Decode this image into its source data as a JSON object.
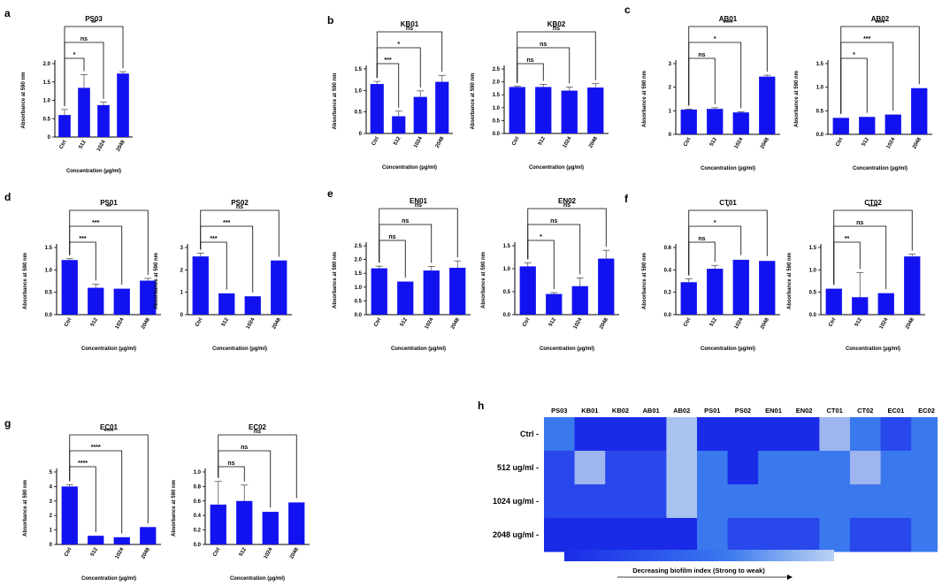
{
  "panels": [
    {
      "letter": "a"
    },
    {
      "letter": "b"
    },
    {
      "letter": "c"
    },
    {
      "letter": "d"
    },
    {
      "letter": "e"
    },
    {
      "letter": "f"
    },
    {
      "letter": "g"
    },
    {
      "letter": "h"
    }
  ],
  "colors": {
    "bar": "#1212f0",
    "text": "#000000"
  },
  "chart_data": [
    {
      "type": "bar",
      "panel": "a",
      "title": "PS03",
      "xlabel": "Concentration (µg/ml)",
      "ylabel": "Absorbance at 590 nm",
      "categories": [
        "Ctrl",
        "512",
        "1024",
        "2048"
      ],
      "values": [
        0.6,
        1.34,
        0.87,
        1.73
      ],
      "errors": [
        0.15,
        0.36,
        0.08,
        0.05
      ],
      "ylim": [
        0,
        2.0
      ],
      "yticks": [
        0,
        0.5,
        1.0,
        1.5,
        2.0
      ],
      "yticklabels": [
        "0",
        "0.5",
        "1.0",
        "1.5",
        "2.0"
      ],
      "sig": [
        {
          "from": 0,
          "to": 1,
          "label": "*",
          "level": 0
        },
        {
          "from": 0,
          "to": 2,
          "label": "ns",
          "level": 1
        },
        {
          "from": 0,
          "to": 3,
          "label": "**",
          "level": 2
        }
      ]
    },
    {
      "type": "bar",
      "panel": "b",
      "title": "KB01",
      "xlabel": "Concentration (µg/ml)",
      "ylabel": "Absorbance at 590 nm",
      "categories": [
        "Ctrl",
        "512",
        "1024",
        "2048"
      ],
      "values": [
        1.15,
        0.4,
        0.85,
        1.2
      ],
      "errors": [
        0.06,
        0.12,
        0.14,
        0.15
      ],
      "ylim": [
        0,
        1.5
      ],
      "yticks": [
        0,
        0.5,
        1.0,
        1.5
      ],
      "yticklabels": [
        "0",
        "0.5",
        "1.0",
        "1.5"
      ],
      "sig": [
        {
          "from": 0,
          "to": 1,
          "label": "***",
          "level": 0
        },
        {
          "from": 0,
          "to": 2,
          "label": "*",
          "level": 1
        },
        {
          "from": 0,
          "to": 3,
          "label": "ns",
          "level": 2
        }
      ]
    },
    {
      "type": "bar",
      "panel": "b",
      "title": "KB02",
      "xlabel": "Concentration (µg/ml)",
      "ylabel": "Absorbance at 590 nm",
      "categories": [
        "Ctrl",
        "512",
        "1024",
        "2048"
      ],
      "values": [
        1.8,
        1.8,
        1.66,
        1.78
      ],
      "errors": [
        0.03,
        0.1,
        0.14,
        0.15
      ],
      "ylim": [
        0,
        2.5
      ],
      "yticks": [
        0,
        0.5,
        1.0,
        1.5,
        2.0,
        2.5
      ],
      "yticklabels": [
        "0.0",
        "0.5",
        "1.0",
        "1.5",
        "2.0",
        "2.5"
      ],
      "sig": [
        {
          "from": 0,
          "to": 1,
          "label": "ns",
          "level": 0
        },
        {
          "from": 0,
          "to": 2,
          "label": "ns",
          "level": 1
        },
        {
          "from": 0,
          "to": 3,
          "label": "ns",
          "level": 2
        }
      ]
    },
    {
      "type": "bar",
      "panel": "c",
      "title": "AB01",
      "xlabel": "Concentration (µg/ml)",
      "ylabel": "Absorbance at 590 nm",
      "categories": [
        "Ctrl",
        "512",
        "1024",
        "2048"
      ],
      "values": [
        1.05,
        1.08,
        0.93,
        2.45
      ],
      "errors": [
        0.02,
        0.05,
        0.03,
        0.06
      ],
      "ylim": [
        0,
        3
      ],
      "yticks": [
        0,
        1,
        2,
        3
      ],
      "yticklabels": [
        "0",
        "1",
        "2",
        "3"
      ],
      "sig": [
        {
          "from": 0,
          "to": 1,
          "label": "ns",
          "level": 0
        },
        {
          "from": 0,
          "to": 2,
          "label": "*",
          "level": 1
        },
        {
          "from": 0,
          "to": 3,
          "label": "****",
          "level": 2
        }
      ]
    },
    {
      "type": "bar",
      "panel": "c",
      "title": "AB02",
      "xlabel": "Concentration (µg/ml)",
      "ylabel": "Absorbance at 590 nm",
      "categories": [
        "Ctrl",
        "512",
        "1024",
        "2048"
      ],
      "values": [
        0.35,
        0.37,
        0.42,
        0.98
      ],
      "errors": [
        0.01,
        0.01,
        0.01,
        0.01
      ],
      "ylim": [
        0,
        1.5
      ],
      "yticks": [
        0,
        0.5,
        1.0,
        1.5
      ],
      "yticklabels": [
        "0.0",
        "0.5",
        "1.0",
        "1.5"
      ],
      "sig": [
        {
          "from": 0,
          "to": 1,
          "label": "*",
          "level": 0
        },
        {
          "from": 0,
          "to": 2,
          "label": "***",
          "level": 1
        },
        {
          "from": 0,
          "to": 3,
          "label": "****",
          "level": 2
        }
      ]
    },
    {
      "type": "bar",
      "panel": "d",
      "title": "PS01",
      "xlabel": "Concentration (µg/ml)",
      "ylabel": "Absorbance at 590 nm",
      "categories": [
        "Ctrl",
        "512",
        "1024",
        "2048"
      ],
      "values": [
        1.22,
        0.6,
        0.58,
        0.76
      ],
      "errors": [
        0.03,
        0.08,
        0.01,
        0.05
      ],
      "ylim": [
        0,
        1.5
      ],
      "yticks": [
        0,
        0.5,
        1.0,
        1.5
      ],
      "yticklabels": [
        "0.0",
        "0.5",
        "1.0",
        "1.5"
      ],
      "sig": [
        {
          "from": 0,
          "to": 1,
          "label": "***",
          "level": 0
        },
        {
          "from": 0,
          "to": 2,
          "label": "***",
          "level": 1
        },
        {
          "from": 0,
          "to": 3,
          "label": "**",
          "level": 2
        }
      ]
    },
    {
      "type": "bar",
      "panel": "d",
      "title": "PS02",
      "xlabel": "Concentration (µg/ml)",
      "ylabel": "Absorbance at 590 nm",
      "categories": [
        "Ctrl",
        "512",
        "1024",
        "2048"
      ],
      "values": [
        2.6,
        0.95,
        0.82,
        2.42
      ],
      "errors": [
        0.15,
        0.01,
        0.01,
        0.01
      ],
      "ylim": [
        0,
        3
      ],
      "yticks": [
        0,
        1,
        2,
        3
      ],
      "yticklabels": [
        "0",
        "1",
        "2",
        "3"
      ],
      "sig": [
        {
          "from": 0,
          "to": 1,
          "label": "***",
          "level": 0
        },
        {
          "from": 0,
          "to": 2,
          "label": "***",
          "level": 1
        },
        {
          "from": 0,
          "to": 3,
          "label": "ns",
          "level": 2
        }
      ]
    },
    {
      "type": "bar",
      "panel": "e",
      "title": "EN01",
      "xlabel": "Concentration (µg/ml)",
      "ylabel": "Absorbance at 590 nm",
      "categories": [
        "Ctrl",
        "512",
        "1024",
        "2048"
      ],
      "values": [
        1.68,
        1.2,
        1.6,
        1.7
      ],
      "errors": [
        0.08,
        0.01,
        0.15,
        0.25
      ],
      "ylim": [
        0,
        2.5
      ],
      "yticks": [
        0,
        0.5,
        1.0,
        1.5,
        2.0,
        2.5
      ],
      "yticklabels": [
        "0.0",
        "0.5",
        "1.0",
        "1.5",
        "2.0",
        "2.5"
      ],
      "sig": [
        {
          "from": 0,
          "to": 1,
          "label": "ns",
          "level": 0
        },
        {
          "from": 0,
          "to": 2,
          "label": "ns",
          "level": 1
        },
        {
          "from": 0,
          "to": 3,
          "label": "ns",
          "level": 2
        }
      ]
    },
    {
      "type": "bar",
      "panel": "e",
      "title": "EN02",
      "xlabel": "Concentration (µg/ml)",
      "ylabel": "Absorbance at 590 nm",
      "categories": [
        "Ctrl",
        "512",
        "1024",
        "2048"
      ],
      "values": [
        1.05,
        0.45,
        0.62,
        1.22
      ],
      "errors": [
        0.08,
        0.03,
        0.18,
        0.18
      ],
      "ylim": [
        0,
        1.5
      ],
      "yticks": [
        0,
        0.5,
        1.0,
        1.5
      ],
      "yticklabels": [
        "0.0",
        "0.5",
        "1.0",
        "1.5"
      ],
      "sig": [
        {
          "from": 0,
          "to": 1,
          "label": "*",
          "level": 0
        },
        {
          "from": 0,
          "to": 2,
          "label": "ns",
          "level": 1
        },
        {
          "from": 0,
          "to": 3,
          "label": "ns",
          "level": 2
        }
      ]
    },
    {
      "type": "bar",
      "panel": "f",
      "title": "CT01",
      "xlabel": "Concentration (µg/ml)",
      "ylabel": "Absorbance at 590 nm",
      "categories": [
        "Ctrl",
        "512",
        "1024",
        "2048"
      ],
      "values": [
        0.29,
        0.41,
        0.49,
        0.48
      ],
      "errors": [
        0.03,
        0.03,
        0.01,
        0.01
      ],
      "ylim": [
        0,
        0.6
      ],
      "yticks": [
        0,
        0.2,
        0.4,
        0.6
      ],
      "yticklabels": [
        "0.0",
        "0.2",
        "0.4",
        "0.6"
      ],
      "sig": [
        {
          "from": 0,
          "to": 1,
          "label": "ns",
          "level": 0
        },
        {
          "from": 0,
          "to": 2,
          "label": "*",
          "level": 1
        },
        {
          "from": 0,
          "to": 3,
          "label": "*",
          "level": 2
        }
      ]
    },
    {
      "type": "bar",
      "panel": "f",
      "title": "CT02",
      "xlabel": "Concentration (µg/ml)",
      "ylabel": "Absorbance at 590 nm",
      "categories": [
        "Ctrl",
        "512",
        "1024",
        "2048"
      ],
      "values": [
        0.58,
        0.39,
        0.48,
        1.3
      ],
      "errors": [
        0.01,
        0.55,
        0.01,
        0.05
      ],
      "ylim": [
        0,
        1.5
      ],
      "yticks": [
        0,
        0.5,
        1.0,
        1.5
      ],
      "yticklabels": [
        "0.0",
        "0.5",
        "1.0",
        "1.5"
      ],
      "sig": [
        {
          "from": 0,
          "to": 1,
          "label": "**",
          "level": 0
        },
        {
          "from": 0,
          "to": 2,
          "label": "ns",
          "level": 1
        },
        {
          "from": 0,
          "to": 3,
          "label": "****",
          "level": 2
        }
      ]
    },
    {
      "type": "bar",
      "panel": "g",
      "title": "EC01",
      "xlabel": "Concentration (µg/ml)",
      "ylabel": "Absorbance at 590 nm",
      "categories": [
        "Ctrl",
        "512",
        "1024",
        "2048"
      ],
      "values": [
        4.0,
        0.6,
        0.5,
        1.2
      ],
      "errors": [
        0.12,
        0.01,
        0.01,
        0.01
      ],
      "ylim": [
        0,
        5
      ],
      "yticks": [
        0,
        1,
        2,
        3,
        4,
        5
      ],
      "yticklabels": [
        "0",
        "1",
        "2",
        "3",
        "4",
        "5"
      ],
      "sig": [
        {
          "from": 0,
          "to": 1,
          "label": "****",
          "level": 0
        },
        {
          "from": 0,
          "to": 2,
          "label": "****",
          "level": 1
        },
        {
          "from": 0,
          "to": 3,
          "label": "****",
          "level": 2
        }
      ]
    },
    {
      "type": "bar",
      "panel": "g",
      "title": "EC02",
      "xlabel": "Concentration (µg/ml)",
      "ylabel": "Absorbance at 590 nm",
      "categories": [
        "Ctrl",
        "512",
        "1024",
        "2048"
      ],
      "values": [
        0.55,
        0.6,
        0.45,
        0.58
      ],
      "errors": [
        0.32,
        0.22,
        0.01,
        0.01
      ],
      "ylim": [
        0,
        1.0
      ],
      "yticks": [
        0,
        0.2,
        0.4,
        0.6,
        0.8,
        1.0
      ],
      "yticklabels": [
        "0.0",
        "0.2",
        "0.4",
        "0.6",
        "0.8",
        "1.0"
      ],
      "sig": [
        {
          "from": 0,
          "to": 1,
          "label": "ns",
          "level": 0
        },
        {
          "from": 0,
          "to": 2,
          "label": "ns",
          "level": 1
        },
        {
          "from": 0,
          "to": 3,
          "label": "ns",
          "level": 2
        }
      ]
    },
    {
      "type": "heatmap",
      "panel": "h",
      "columns": [
        "PS03",
        "KB01",
        "KB02",
        "AB01",
        "AB02",
        "PS01",
        "PS02",
        "EN01",
        "EN02",
        "CT01",
        "CT02",
        "EC01",
        "EC02"
      ],
      "rows": [
        "Ctrl -",
        "512 ug/ml -",
        "1024 ug/ml -",
        "2048 ug/ml -"
      ],
      "levels": [
        [
          3,
          1,
          1,
          1,
          5,
          1,
          1,
          1,
          1,
          4,
          3,
          2,
          3
        ],
        [
          2,
          4,
          2,
          2,
          5,
          3,
          1,
          3,
          3,
          3,
          4,
          3,
          3
        ],
        [
          2,
          2,
          2,
          2,
          5,
          3,
          3,
          3,
          3,
          3,
          3,
          3,
          3
        ],
        [
          1,
          1,
          1,
          1,
          1,
          3,
          2,
          2,
          2,
          3,
          2,
          2,
          3
        ]
      ],
      "palette": [
        "#1a2be8",
        "#2848ec",
        "#3a78ee",
        "#9fb5ef",
        "#a9c3f0"
      ],
      "colorbar_label": "Decreasing biofilm index (Strong to weak)"
    }
  ]
}
